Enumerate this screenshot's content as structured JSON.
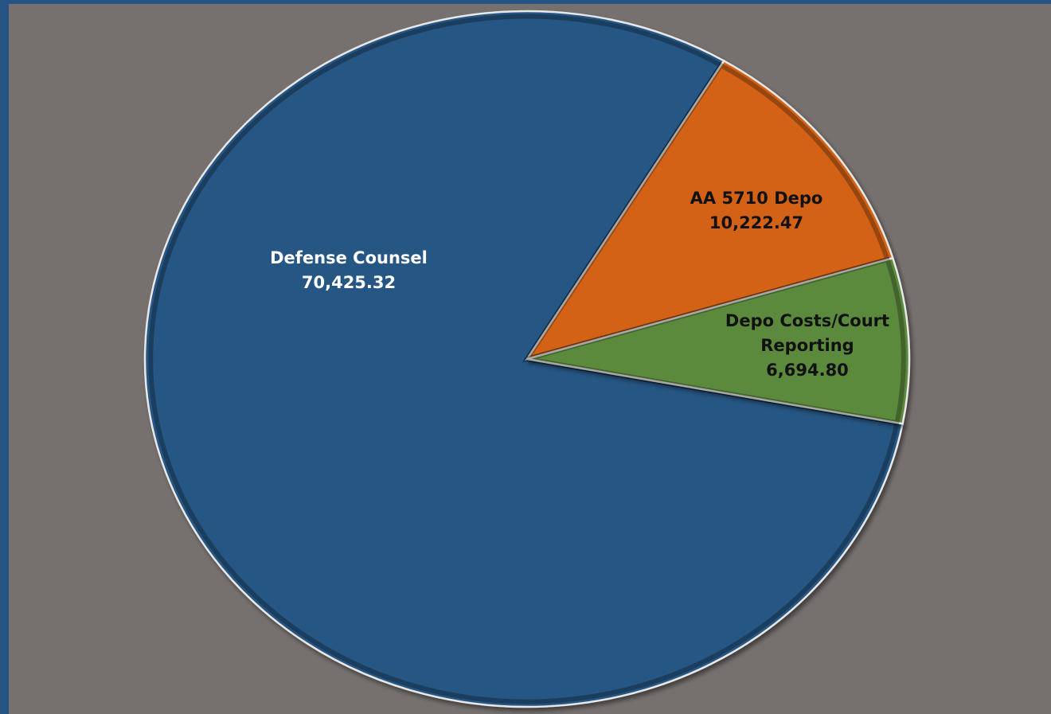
{
  "chart_data": {
    "type": "pie",
    "title": "",
    "legend": "none",
    "slices": [
      {
        "name": "Defense Counsel",
        "value": 70425.32,
        "value_label": "70,425.32",
        "color": "#255684",
        "label_color": "#ffffff",
        "label_lines": [
          "Defense Counsel",
          "70,425.32"
        ]
      },
      {
        "name": "AA 5710 Depo",
        "value": 10222.47,
        "value_label": "10,222.47",
        "color": "#d36216",
        "label_color": "#111111",
        "label_lines": [
          "AA 5710 Depo",
          "10,222.47"
        ]
      },
      {
        "name": "Depo Costs/Court Reporting",
        "value": 6694.8,
        "value_label": "6,694.80",
        "color": "#5b8a3c",
        "label_color": "#111111",
        "label_lines": [
          "Depo Costs/Court",
          "Reporting",
          "6,694.80"
        ]
      }
    ]
  }
}
